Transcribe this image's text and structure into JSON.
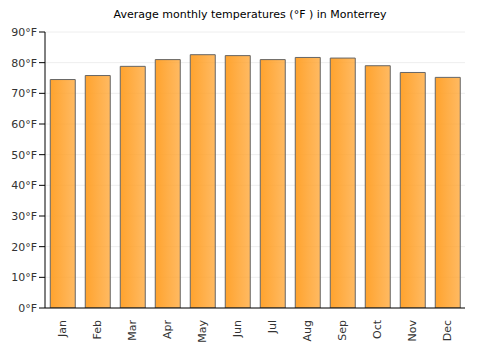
{
  "chart_data": {
    "type": "bar",
    "title": "Average monthly temperatures (°F ) in Monterrey",
    "categories": [
      "Jan",
      "Feb",
      "Mar",
      "Apr",
      "May",
      "Jun",
      "Jul",
      "Aug",
      "Sep",
      "Oct",
      "Nov",
      "Dec"
    ],
    "values": [
      74.5,
      75.8,
      78.8,
      81,
      82.6,
      82.3,
      81,
      81.7,
      81.5,
      79,
      76.8,
      75.2
    ],
    "color": "#ffa32e",
    "ylim": [
      0,
      90
    ],
    "yticks": [
      {
        "value": 0,
        "label": "0°F"
      },
      {
        "value": 10,
        "label": "10°F"
      },
      {
        "value": 20,
        "label": "20°F"
      },
      {
        "value": 30,
        "label": "30°F"
      },
      {
        "value": 40,
        "label": "40°F"
      },
      {
        "value": 50,
        "label": "50°F"
      },
      {
        "value": 60,
        "label": "60°F"
      },
      {
        "value": 70,
        "label": "70°F"
      },
      {
        "value": 80,
        "label": "80°F"
      },
      {
        "value": 90,
        "label": "90°F"
      }
    ],
    "grid": true
  }
}
